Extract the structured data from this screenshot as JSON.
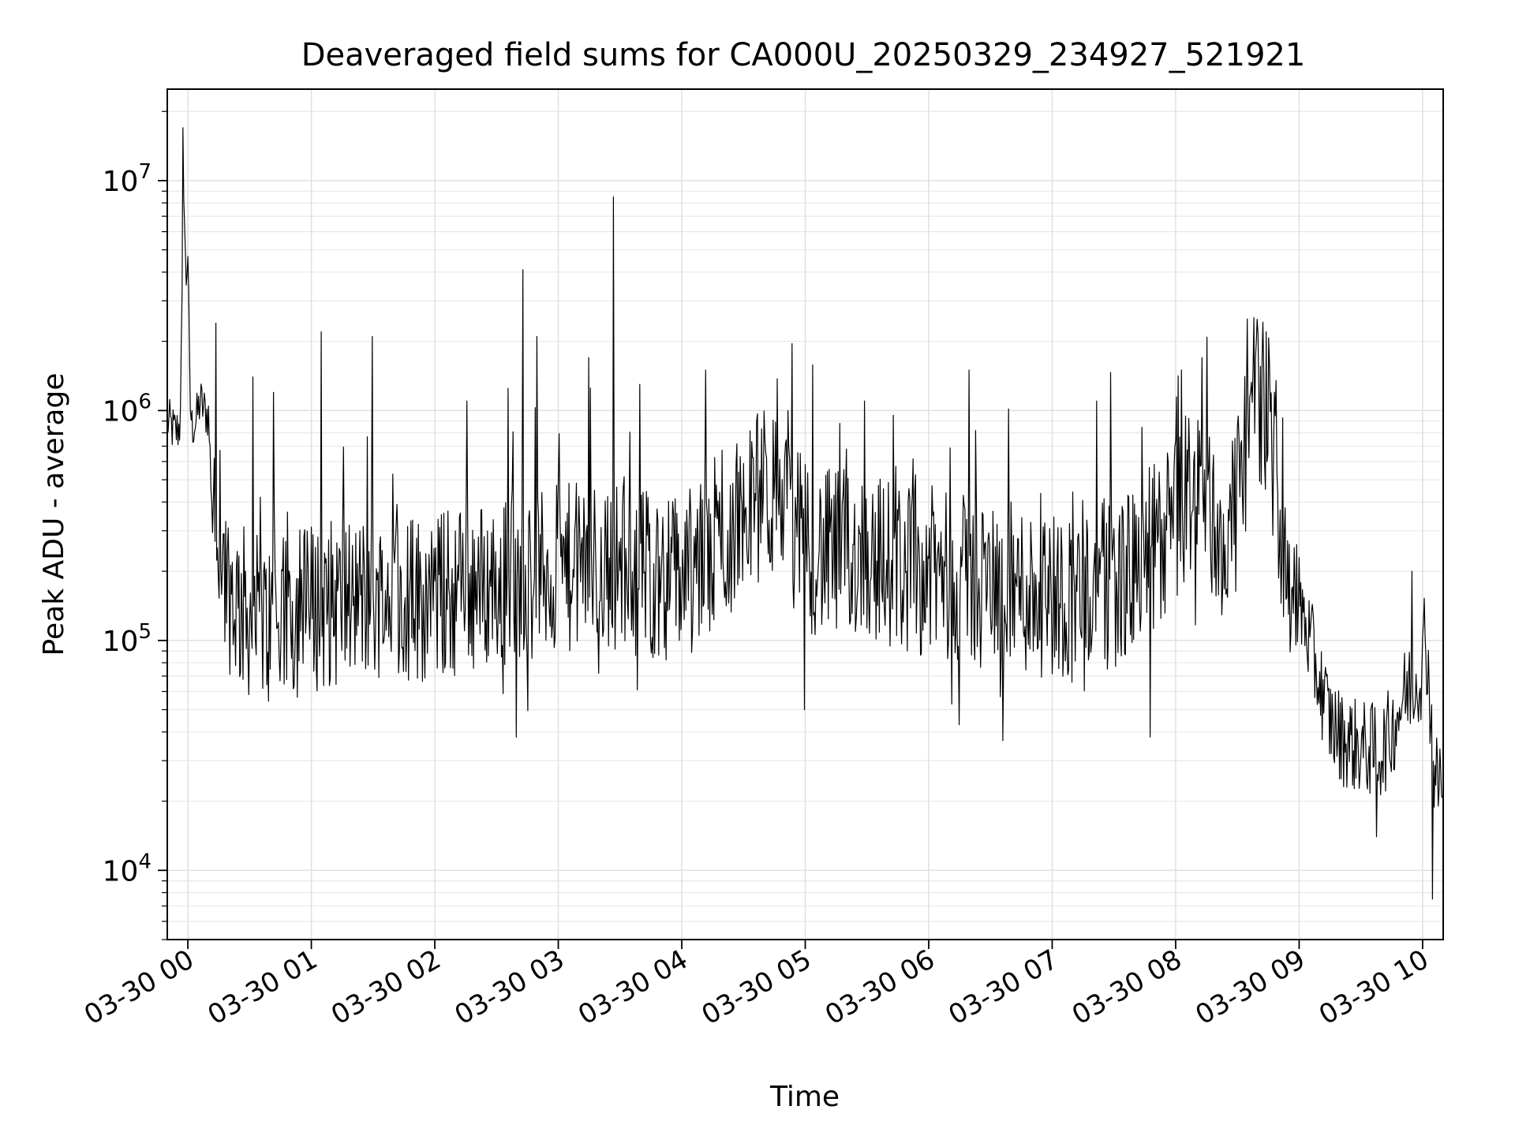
{
  "chart_data": {
    "type": "line",
    "title": "Deaveraged field sums for CA000U_20250329_234927_521921",
    "xlabel": "Time",
    "ylabel": "Peak ADU - average",
    "yscale": "log",
    "ylim": [
      5000,
      25000000
    ],
    "xlim": [
      "03-29 23:50",
      "03-30 10:10"
    ],
    "grid": true,
    "legend": "none",
    "line_color": "#000000",
    "x_ticks": [
      "03-30 00",
      "03-30 01",
      "03-30 02",
      "03-30 03",
      "03-30 04",
      "03-30 05",
      "03-30 06",
      "03-30 07",
      "03-30 08",
      "03-30 09",
      "03-30 10"
    ],
    "y_ticks": [
      {
        "base": "10",
        "exp": "4",
        "value": 10000
      },
      {
        "base": "10",
        "exp": "5",
        "value": 100000
      },
      {
        "base": "10",
        "exp": "6",
        "value": 1000000
      },
      {
        "base": "10",
        "exp": "7",
        "value": 10000000
      }
    ],
    "series": [
      {
        "x": [
          "03-29 23:50",
          "03-29 23:52",
          "03-29 23:54",
          "03-29 23:56",
          "03-29 23:57",
          "03-29 23:58",
          "03-29 23:59",
          "03-30 00:00",
          "03-30 00:01",
          "03-30 00:02",
          "03-30 00:04",
          "03-30 00:06",
          "03-30 00:08",
          "03-30 00:10",
          "03-30 00:12",
          "03-30 00:15",
          "03-30 00:20",
          "03-30 00:25",
          "03-30 00:30",
          "03-30 00:35",
          "03-30 00:40",
          "03-30 00:45",
          "03-30 00:50",
          "03-30 00:55",
          "03-30 01:00",
          "03-30 01:10",
          "03-30 01:20",
          "03-30 01:30",
          "03-30 01:40",
          "03-30 01:50",
          "03-30 02:00",
          "03-30 02:10",
          "03-30 02:20",
          "03-30 02:30",
          "03-30 02:40",
          "03-30 02:50",
          "03-30 03:00",
          "03-30 03:10",
          "03-30 03:20",
          "03-30 03:30",
          "03-30 03:40",
          "03-30 03:50",
          "03-30 04:00",
          "03-30 04:10",
          "03-30 04:20",
          "03-30 04:30",
          "03-30 04:40",
          "03-30 04:50",
          "03-30 05:00",
          "03-30 05:10",
          "03-30 05:20",
          "03-30 05:30",
          "03-30 05:40",
          "03-30 05:50",
          "03-30 06:00",
          "03-30 06:10",
          "03-30 06:20",
          "03-30 06:30",
          "03-30 06:40",
          "03-30 06:50",
          "03-30 07:00",
          "03-30 07:10",
          "03-30 07:20",
          "03-30 07:30",
          "03-30 07:40",
          "03-30 07:50",
          "03-30 08:00",
          "03-30 08:05",
          "03-30 08:10",
          "03-30 08:15",
          "03-30 08:20",
          "03-30 08:25",
          "03-30 08:30",
          "03-30 08:35",
          "03-30 08:38",
          "03-30 08:40",
          "03-30 08:45",
          "03-30 08:50",
          "03-30 08:55",
          "03-30 09:00",
          "03-30 09:05",
          "03-30 09:10",
          "03-30 09:15",
          "03-30 09:20",
          "03-30 09:30",
          "03-30 09:40",
          "03-30 09:45",
          "03-30 09:50",
          "03-30 09:55",
          "03-30 10:00",
          "03-30 10:01",
          "03-30 10:03",
          "03-30 10:05",
          "03-30 10:07",
          "03-30 10:10"
        ],
        "y": [
          900000,
          850000,
          800000,
          850000,
          2000000,
          10000000,
          3500000,
          5000000,
          1100000,
          850000,
          900000,
          1100000,
          1000000,
          950000,
          350000,
          260000,
          170000,
          140000,
          130000,
          120000,
          115000,
          120000,
          125000,
          135000,
          140000,
          145000,
          150000,
          155000,
          160000,
          150000,
          155000,
          165000,
          170000,
          180000,
          190000,
          195000,
          200000,
          210000,
          205000,
          215000,
          200000,
          190000,
          195000,
          210000,
          260000,
          360000,
          450000,
          380000,
          260000,
          235000,
          240000,
          230000,
          220000,
          205000,
          200000,
          190000,
          180000,
          175000,
          170000,
          165000,
          160000,
          155000,
          170000,
          180000,
          195000,
          260000,
          320000,
          420000,
          480000,
          380000,
          300000,
          250000,
          400000,
          780000,
          1200000,
          1200000,
          950000,
          420000,
          190000,
          150000,
          100000,
          65000,
          45000,
          38000,
          34000,
          33000,
          40000,
          55000,
          65000,
          75000,
          120000,
          70000,
          30000,
          24000,
          26000
        ]
      }
    ],
    "spikes": [
      {
        "x": "03-29 23:58",
        "y": 17000000
      },
      {
        "x": "03-30 00:14",
        "y": 2400000
      },
      {
        "x": "03-30 00:32",
        "y": 1400000
      },
      {
        "x": "03-30 00:42",
        "y": 1200000
      },
      {
        "x": "03-30 01:05",
        "y": 2200000
      },
      {
        "x": "03-30 01:30",
        "y": 2100000
      },
      {
        "x": "03-30 02:16",
        "y": 1100000
      },
      {
        "x": "03-30 02:36",
        "y": 1250000
      },
      {
        "x": "03-30 02:43",
        "y": 4100000
      },
      {
        "x": "03-30 02:50",
        "y": 2100000
      },
      {
        "x": "03-30 03:15",
        "y": 1700000
      },
      {
        "x": "03-30 03:27",
        "y": 8500000
      },
      {
        "x": "03-30 03:40",
        "y": 1300000
      },
      {
        "x": "03-30 04:12",
        "y": 1500000
      },
      {
        "x": "03-30 04:52",
        "y": 1000000
      },
      {
        "x": "03-30 05:29",
        "y": 1100000
      },
      {
        "x": "03-30 06:20",
        "y": 1500000
      },
      {
        "x": "03-30 07:22",
        "y": 1100000
      },
      {
        "x": "03-30 08:03",
        "y": 1500000
      },
      {
        "x": "03-30 08:13",
        "y": 1700000
      },
      {
        "x": "03-30 08:35",
        "y": 2500000
      },
      {
        "x": "03-30 09:55",
        "y": 200000
      }
    ],
    "dips": [
      {
        "x": "03-30 02:40",
        "y": 38000
      },
      {
        "x": "03-30 05:00",
        "y": 50000
      },
      {
        "x": "03-30 06:15",
        "y": 43000
      },
      {
        "x": "03-30 07:48",
        "y": 38000
      },
      {
        "x": "03-30 09:38",
        "y": 14000
      },
      {
        "x": "03-30 10:05",
        "y": 7500
      }
    ]
  }
}
